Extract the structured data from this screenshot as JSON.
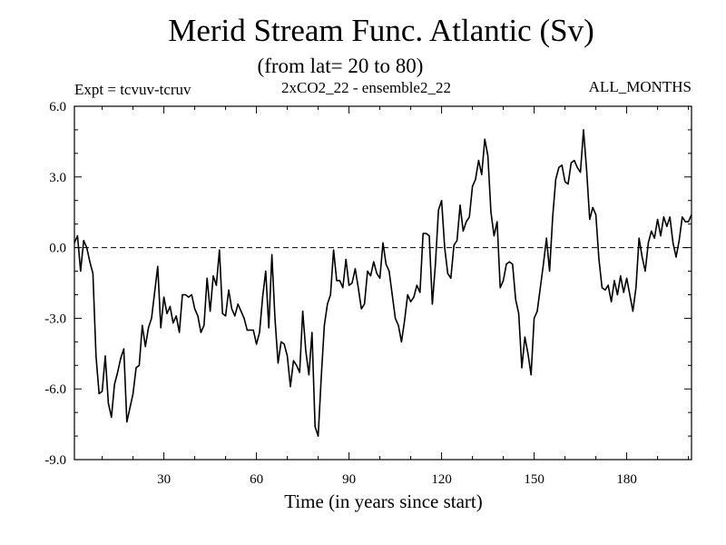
{
  "chart_data": {
    "type": "line",
    "title": "Merid Stream Func. Atlantic (Sv)",
    "subtitle": "(from lat= 20 to 80)",
    "expt_label": "Expt = tcvuv-tcruv",
    "run_label": "2xCO2_22 - ensemble2_22",
    "months_label": "ALL_MONTHS",
    "xlabel": "Time (in years since start)",
    "ylabel": "",
    "xlim": [
      1,
      201
    ],
    "ylim": [
      -9,
      6
    ],
    "xticks": [
      30,
      60,
      90,
      120,
      150,
      180
    ],
    "xtick_labels": [
      "30",
      "60",
      "90",
      "120",
      "150",
      "180"
    ],
    "yticks": [
      -9,
      -6,
      -3,
      0,
      3,
      6
    ],
    "ytick_labels": [
      "-9.0",
      "-6.0",
      "-3.0",
      "0.0",
      "3.0",
      "6.0"
    ],
    "zero_line": true,
    "grid": false,
    "series": [
      {
        "x": [
          1,
          2,
          3,
          4,
          5,
          6,
          7,
          8,
          9,
          10,
          11,
          12,
          13,
          14,
          15,
          16,
          17,
          18,
          19,
          20,
          21,
          22,
          23,
          24,
          25,
          26,
          27,
          28,
          29,
          30,
          31,
          32,
          33,
          34,
          35,
          36,
          37,
          38,
          39,
          40,
          41,
          42,
          43,
          44,
          45,
          46,
          47,
          48,
          49,
          50,
          51,
          52,
          53,
          54,
          55,
          56,
          57,
          58,
          59,
          60,
          61,
          62,
          63,
          64,
          65,
          66,
          67,
          68,
          69,
          70,
          71,
          72,
          73,
          74,
          75,
          76,
          77,
          78,
          79,
          80,
          81,
          82,
          83,
          84,
          85,
          86,
          87,
          88,
          89,
          90,
          91,
          92,
          93,
          94,
          95,
          96,
          97,
          98,
          99,
          100,
          101,
          102,
          103,
          104,
          105,
          106,
          107,
          108,
          109,
          110,
          111,
          112,
          113,
          114,
          115,
          116,
          117,
          118,
          119,
          120,
          121,
          122,
          123,
          124,
          125,
          126,
          127,
          128,
          129,
          130,
          131,
          132,
          133,
          134,
          135,
          136,
          137,
          138,
          139,
          140,
          141,
          142,
          143,
          144,
          145,
          146,
          147,
          148,
          149,
          150,
          151,
          152,
          153,
          154,
          155,
          156,
          157,
          158,
          159,
          160,
          161,
          162,
          163,
          164,
          165,
          166,
          167,
          168,
          169,
          170,
          171,
          172,
          173,
          174,
          175,
          176,
          177,
          178,
          179,
          180,
          181,
          182,
          183,
          184,
          185,
          186,
          187,
          188,
          189,
          190,
          191,
          192,
          193,
          194,
          195,
          196,
          197,
          198,
          199,
          200,
          201
        ],
        "values": [
          0.2,
          0.5,
          -1.0,
          0.3,
          0.0,
          -0.6,
          -1.1,
          -4.6,
          -6.2,
          -6.1,
          -4.6,
          -6.6,
          -7.2,
          -5.8,
          -5.3,
          -4.7,
          -4.3,
          -7.4,
          -6.8,
          -6.2,
          -5.1,
          -5.0,
          -3.3,
          -4.2,
          -3.4,
          -3.0,
          -1.9,
          -0.8,
          -3.4,
          -2.1,
          -2.8,
          -2.5,
          -3.2,
          -2.9,
          -3.6,
          -2.0,
          -2.0,
          -2.1,
          -2.0,
          -2.6,
          -2.9,
          -3.6,
          -3.3,
          -1.3,
          -2.7,
          -1.2,
          -1.6,
          -0.1,
          -2.8,
          -2.9,
          -1.8,
          -2.6,
          -2.9,
          -2.4,
          -2.7,
          -3.0,
          -3.5,
          -3.5,
          -3.5,
          -4.1,
          -3.6,
          -2.1,
          -1.0,
          -3.4,
          -0.3,
          -3.0,
          -4.9,
          -4.0,
          -4.1,
          -4.6,
          -5.9,
          -4.8,
          -5.0,
          -5.3,
          -2.7,
          -4.4,
          -5.4,
          -3.6,
          -7.6,
          -8.0,
          -5.5,
          -3.3,
          -2.4,
          -2.0,
          -0.1,
          -1.4,
          -1.4,
          -1.7,
          -0.5,
          -1.6,
          -1.5,
          -0.9,
          -1.7,
          -2.6,
          -2.4,
          -1.0,
          -1.2,
          -0.6,
          -1.1,
          -1.3,
          0.2,
          -0.7,
          -1.0,
          -2.0,
          -3.0,
          -3.3,
          -4.0,
          -3.1,
          -2.0,
          -2.3,
          -2.1,
          -1.6,
          -1.9,
          0.6,
          0.6,
          0.5,
          -2.4,
          -0.7,
          1.6,
          2.0,
          0.0,
          -1.1,
          -1.3,
          0.1,
          0.3,
          1.8,
          0.7,
          1.1,
          1.3,
          2.6,
          2.9,
          3.7,
          3.1,
          4.6,
          3.9,
          1.5,
          0.5,
          1.1,
          -1.7,
          -1.4,
          -0.7,
          -0.6,
          -0.7,
          -2.2,
          -2.8,
          -5.1,
          -3.8,
          -4.5,
          -5.4,
          -3.0,
          -2.7,
          -1.7,
          -0.7,
          0.4,
          -1.0,
          1.3,
          2.9,
          3.4,
          3.5,
          2.8,
          2.7,
          3.6,
          3.7,
          3.4,
          3.2,
          5.0,
          3.3,
          1.2,
          1.7,
          1.4,
          -0.5,
          -1.7,
          -1.8,
          -1.6,
          -2.3,
          -1.4,
          -2.0,
          -1.2,
          -1.9,
          -1.3,
          -2.0,
          -2.7,
          -1.7,
          0.4,
          -0.4,
          -1.0,
          0.2,
          0.7,
          0.4,
          1.2,
          0.5,
          1.3,
          0.9,
          1.3,
          0.2,
          -0.4,
          0.3,
          1.3,
          1.1,
          1.1,
          1.4
        ]
      }
    ],
    "line_color": "#000000",
    "background": "#ffffff"
  }
}
